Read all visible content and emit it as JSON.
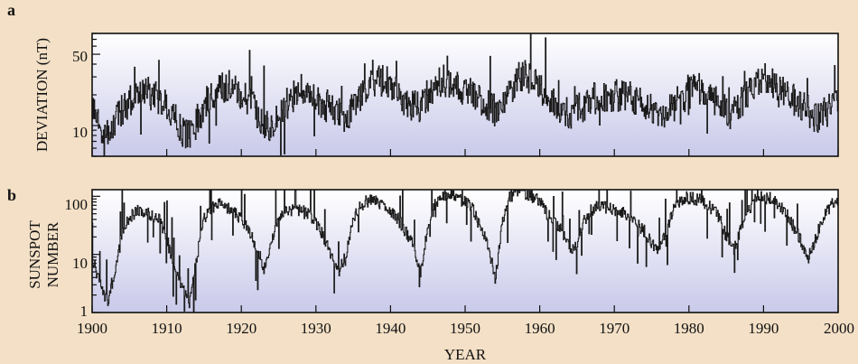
{
  "chart_data": [
    {
      "panel": "a",
      "type": "line",
      "ylabel": "DEVIATION (nT)",
      "yscale": "log",
      "ylim": [
        5,
        80
      ],
      "xlim": [
        1900,
        2000
      ],
      "yticks": [
        10,
        50
      ],
      "grid": false,
      "series": [
        {
          "x": [
            1900,
            1901,
            1902,
            1903,
            1904,
            1905,
            1906,
            1907,
            1908,
            1909,
            1910,
            1911,
            1912,
            1913,
            1914,
            1915,
            1916,
            1917,
            1918,
            1919,
            1920,
            1921,
            1922,
            1923,
            1924,
            1925,
            1926,
            1927,
            1928,
            1929,
            1930,
            1931,
            1932,
            1933,
            1934,
            1935,
            1936,
            1937,
            1938,
            1939,
            1940,
            1941,
            1942,
            1943,
            1944,
            1945,
            1946,
            1947,
            1948,
            1949,
            1950,
            1951,
            1952,
            1953,
            1954,
            1955,
            1956,
            1957,
            1958,
            1959,
            1960,
            1961,
            1962,
            1963,
            1964,
            1965,
            1966,
            1967,
            1968,
            1969,
            1970,
            1971,
            1972,
            1973,
            1974,
            1975,
            1976,
            1977,
            1978,
            1979,
            1980,
            1981,
            1982,
            1983,
            1984,
            1985,
            1986,
            1987,
            1988,
            1989,
            1990,
            1991,
            1992,
            1993,
            1994,
            1995,
            1996,
            1997,
            1998,
            1999,
            2000
          ],
          "values": [
            14,
            9,
            8,
            11,
            14,
            18,
            20,
            22,
            20,
            18,
            15,
            12,
            9,
            8,
            11,
            16,
            19,
            22,
            25,
            22,
            20,
            18,
            14,
            11,
            10,
            13,
            16,
            19,
            22,
            20,
            18,
            16,
            14,
            13,
            12,
            15,
            19,
            24,
            28,
            27,
            25,
            20,
            17,
            16,
            15,
            20,
            26,
            28,
            27,
            24,
            22,
            20,
            18,
            16,
            14,
            15,
            22,
            30,
            32,
            28,
            24,
            20,
            16,
            14,
            13,
            14,
            16,
            18,
            20,
            19,
            20,
            19,
            20,
            18,
            17,
            14,
            12,
            13,
            16,
            20,
            22,
            24,
            20,
            18,
            16,
            14,
            13,
            17,
            22,
            27,
            30,
            26,
            22,
            20,
            18,
            16,
            14,
            12,
            13,
            15,
            18
          ]
        }
      ]
    },
    {
      "panel": "b",
      "type": "line",
      "xlabel": "YEAR",
      "ylabel": "SUNSPOT NUMBER",
      "yscale": "log",
      "ylim": [
        1,
        130
      ],
      "xlim": [
        1900,
        2000
      ],
      "yticks": [
        1,
        10,
        100
      ],
      "xticks": [
        1900,
        1910,
        1920,
        1930,
        1940,
        1950,
        1960,
        1970,
        1980,
        1990,
        2000
      ],
      "grid": false,
      "series": [
        {
          "x": [
            1900,
            1901,
            1902,
            1903,
            1904,
            1905,
            1906,
            1907,
            1908,
            1909,
            1910,
            1911,
            1912,
            1913,
            1914,
            1915,
            1916,
            1917,
            1918,
            1919,
            1920,
            1921,
            1922,
            1923,
            1924,
            1925,
            1926,
            1927,
            1928,
            1929,
            1930,
            1931,
            1932,
            1933,
            1934,
            1935,
            1936,
            1937,
            1938,
            1939,
            1940,
            1941,
            1942,
            1943,
            1944,
            1945,
            1946,
            1947,
            1948,
            1949,
            1950,
            1951,
            1952,
            1953,
            1954,
            1955,
            1956,
            1957,
            1958,
            1959,
            1960,
            1961,
            1962,
            1963,
            1964,
            1965,
            1966,
            1967,
            1968,
            1969,
            1970,
            1971,
            1972,
            1973,
            1974,
            1975,
            1976,
            1977,
            1978,
            1979,
            1980,
            1981,
            1982,
            1983,
            1984,
            1985,
            1986,
            1987,
            1988,
            1989,
            1990,
            1991,
            1992,
            1993,
            1994,
            1995,
            1996,
            1997,
            1998,
            1999,
            2000
          ],
          "values": [
            9,
            3,
            1.5,
            5,
            22,
            45,
            55,
            55,
            45,
            40,
            18,
            6,
            3,
            1.5,
            9,
            45,
            60,
            80,
            65,
            55,
            38,
            25,
            14,
            6,
            15,
            40,
            55,
            60,
            55,
            50,
            35,
            20,
            10,
            5,
            10,
            40,
            70,
            85,
            80,
            70,
            55,
            40,
            25,
            15,
            5,
            30,
            80,
            100,
            100,
            95,
            80,
            60,
            30,
            15,
            4,
            35,
            100,
            120,
            115,
            100,
            80,
            50,
            35,
            25,
            12,
            15,
            40,
            60,
            70,
            65,
            60,
            55,
            45,
            35,
            25,
            15,
            12,
            25,
            65,
            90,
            95,
            90,
            80,
            60,
            45,
            20,
            12,
            30,
            60,
            90,
            95,
            90,
            70,
            50,
            30,
            17,
            9,
            20,
            45,
            70,
            80
          ]
        }
      ]
    }
  ]
}
